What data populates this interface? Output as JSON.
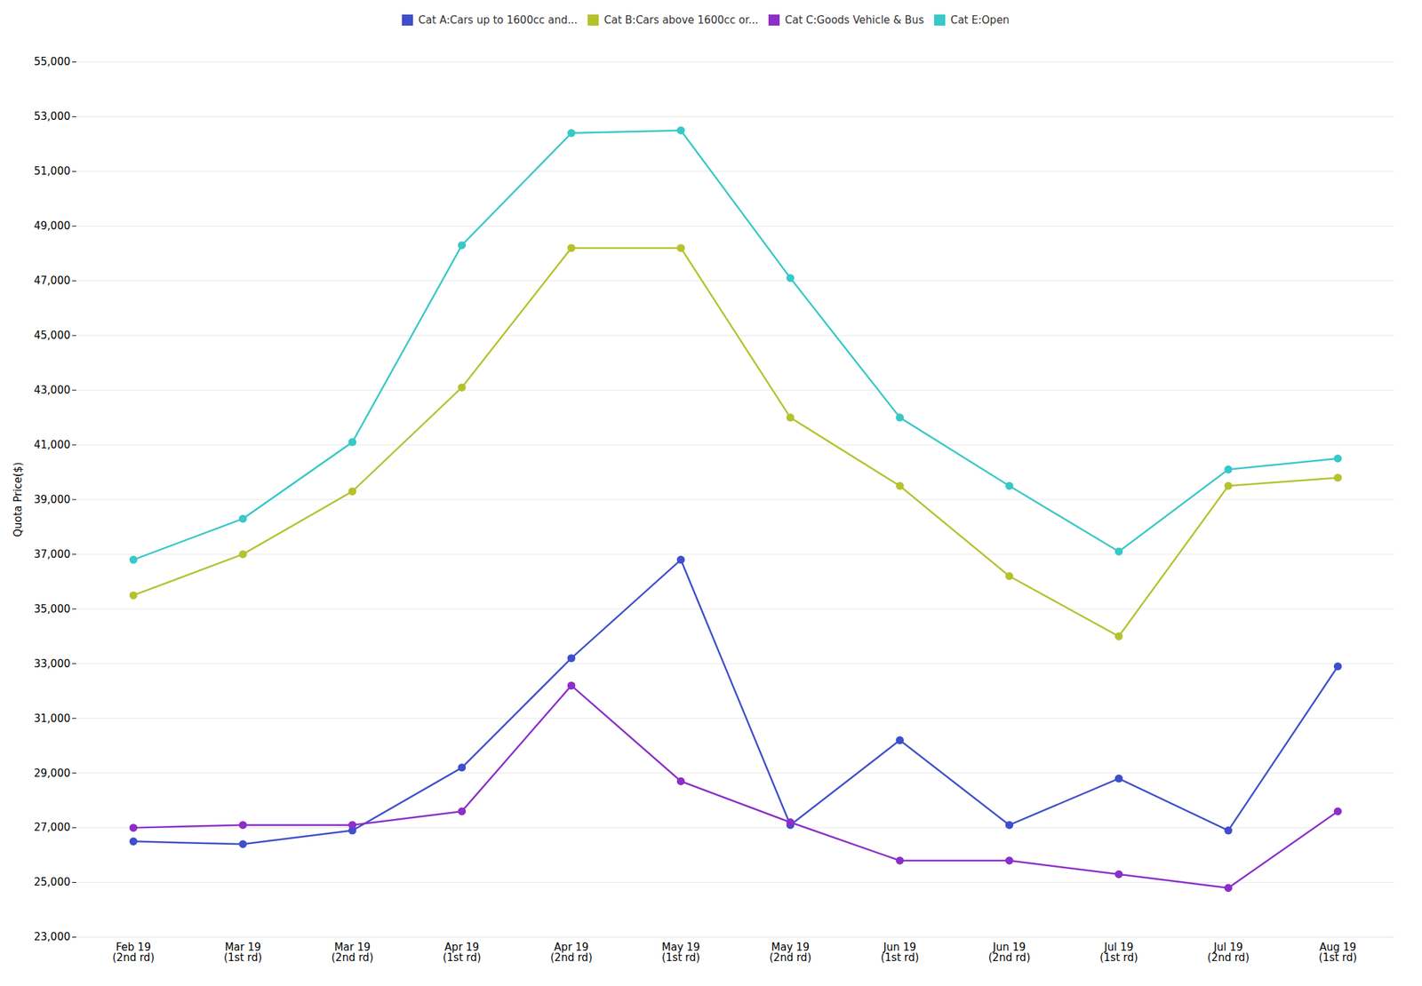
{
  "chart_data": {
    "type": "line",
    "categories": [
      "Feb 19\n(2nd rd)",
      "Mar 19\n(1st rd)",
      "Mar 19\n(2nd rd)",
      "Apr 19\n(1st rd)",
      "Apr 19\n(2nd rd)",
      "May 19\n(1st rd)",
      "May 19\n(2nd rd)",
      "Jun 19\n(1st rd)",
      "Jun 19\n(2nd rd)",
      "Jul 19\n(1st rd)",
      "Jul 19\n(2nd rd)",
      "Aug 19\n(1st rd)"
    ],
    "series": [
      {
        "name": "Cat A:Cars up to 1600cc and...",
        "color": "#3f4fcc",
        "values": [
          26500,
          26400,
          26900,
          29200,
          33200,
          36800,
          27100,
          30200,
          27100,
          28800,
          26900,
          32900
        ]
      },
      {
        "name": "Cat B:Cars above 1600cc or...",
        "color": "#b5c22e",
        "values": [
          35500,
          37000,
          39300,
          43100,
          48200,
          48200,
          42000,
          39500,
          36200,
          34000,
          39500,
          39800
        ]
      },
      {
        "name": "Cat C:Goods Vehicle & Bus",
        "color": "#8b2fc9",
        "values": [
          27000,
          27100,
          27100,
          27600,
          32200,
          28700,
          27200,
          25800,
          25800,
          25300,
          24800,
          27600
        ]
      },
      {
        "name": "Cat E:Open",
        "color": "#38c8c8",
        "values": [
          36800,
          38300,
          41100,
          48300,
          52400,
          52500,
          47100,
          42000,
          39500,
          37100,
          40100,
          40500
        ]
      }
    ],
    "ylabel": "Quota Price($)",
    "ylim": [
      23000,
      55000
    ],
    "yticks": [
      {
        "value": 23000,
        "label": "23,000"
      },
      {
        "value": 25000,
        "label": "25,000"
      },
      {
        "value": 27000,
        "label": "27,000"
      },
      {
        "value": 29000,
        "label": "29,000"
      },
      {
        "value": 31000,
        "label": "31,000"
      },
      {
        "value": 33000,
        "label": "33,000"
      },
      {
        "value": 35000,
        "label": "35,000"
      },
      {
        "value": 37000,
        "label": "37,000"
      },
      {
        "value": 39000,
        "label": "39,000"
      },
      {
        "value": 41000,
        "label": "41,000"
      },
      {
        "value": 43000,
        "label": "43,000"
      },
      {
        "value": 45000,
        "label": "45,000"
      },
      {
        "value": 47000,
        "label": "47,000"
      },
      {
        "value": 49000,
        "label": "49,000"
      },
      {
        "value": 51000,
        "label": "51,000"
      },
      {
        "value": 53000,
        "label": "53,000"
      },
      {
        "value": 55000,
        "label": "55,000"
      }
    ],
    "grid": true,
    "legend": "top",
    "marker": "circle"
  }
}
